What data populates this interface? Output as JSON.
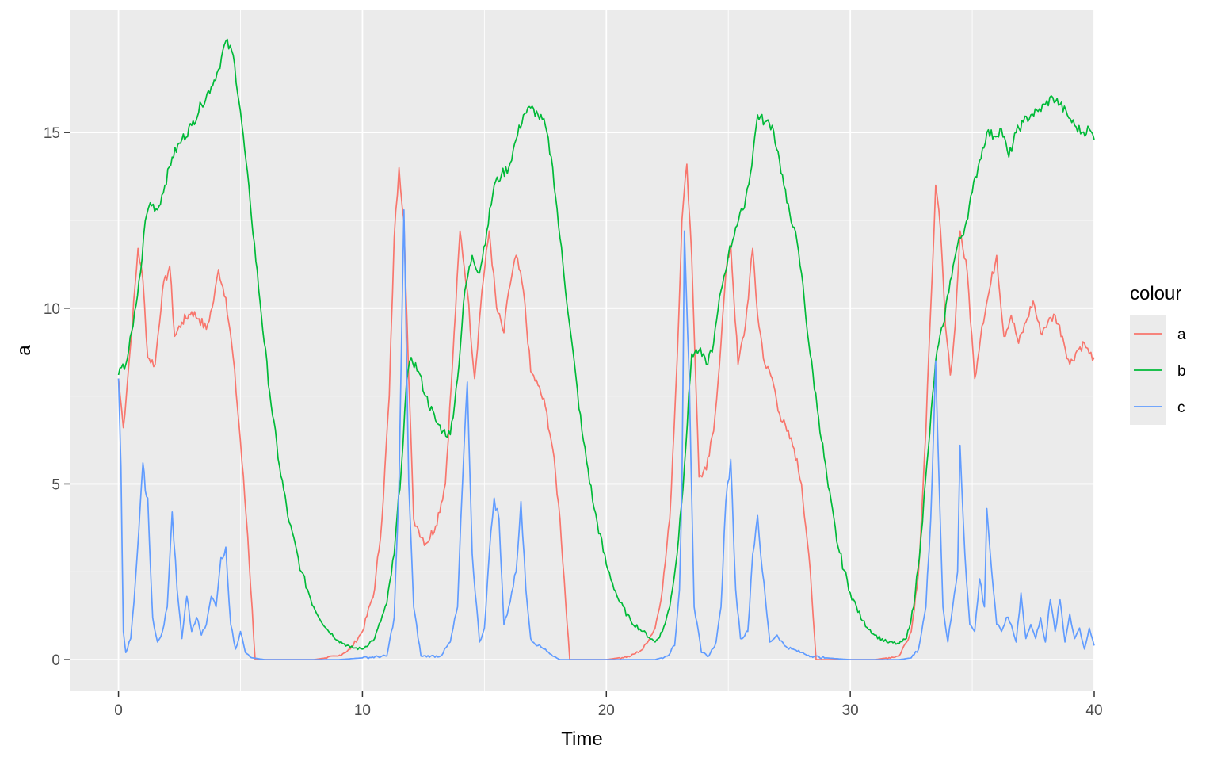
{
  "chart_data": {
    "type": "line",
    "title": "",
    "xlabel": "Time",
    "ylabel": "a",
    "xlim": [
      -2,
      40
    ],
    "ylim": [
      -0.9,
      18.5
    ],
    "x_ticks": [
      0,
      10,
      20,
      30,
      40
    ],
    "y_ticks": [
      0,
      5,
      10,
      15
    ],
    "x_tick_labels": [
      "0",
      "10",
      "20",
      "30",
      "40"
    ],
    "y_tick_labels": [
      "0",
      "5",
      "10",
      "15"
    ],
    "grid": true,
    "legend": {
      "title": "colour",
      "position": "right"
    },
    "background": "#ebebeb",
    "grid_color": "#ffffff",
    "series": [
      {
        "name": "a",
        "color": "#f8766d",
        "x": [
          0,
          0.2,
          0.5,
          0.8,
          1.0,
          1.2,
          1.5,
          1.8,
          2.1,
          2.3,
          2.6,
          3.0,
          3.3,
          3.6,
          3.9,
          4.1,
          4.4,
          4.7,
          5.0,
          5.3,
          5.6,
          6.0,
          7.0,
          8.0,
          9.0,
          9.5,
          10.0,
          10.5,
          10.8,
          11.1,
          11.3,
          11.5,
          11.7,
          11.9,
          12.1,
          12.3,
          12.6,
          13.0,
          13.4,
          13.7,
          14.0,
          14.3,
          14.6,
          14.9,
          15.2,
          15.5,
          15.8,
          16.0,
          16.3,
          16.6,
          16.9,
          17.2,
          17.5,
          17.8,
          18.1,
          18.5,
          19.0,
          20.0,
          21.0,
          21.5,
          22.0,
          22.3,
          22.6,
          22.9,
          23.1,
          23.3,
          23.5,
          23.8,
          24.1,
          24.4,
          24.7,
          24.9,
          25.1,
          25.4,
          25.7,
          26.0,
          26.2,
          26.5,
          26.8,
          27.1,
          27.4,
          27.7,
          28.0,
          28.3,
          28.6,
          29.0,
          30.0,
          31.0,
          32.0,
          32.5,
          32.8,
          33.1,
          33.3,
          33.5,
          33.7,
          33.9,
          34.1,
          34.3,
          34.5,
          34.8,
          35.1,
          35.4,
          35.7,
          36.0,
          36.3,
          36.6,
          36.9,
          37.2,
          37.5,
          37.8,
          38.1,
          38.4,
          38.7,
          39.0,
          39.3,
          39.6,
          39.8,
          40.0
        ],
        "values": [
          8.0,
          6.6,
          9.0,
          11.7,
          10.8,
          8.6,
          8.4,
          10.5,
          11.2,
          9.2,
          9.6,
          9.9,
          9.7,
          9.4,
          10.2,
          11.1,
          10.3,
          8.6,
          6.2,
          3.5,
          0.0,
          0.0,
          0.0,
          0.0,
          0.1,
          0.3,
          0.8,
          2.0,
          4.0,
          7.5,
          12.0,
          14.0,
          12.5,
          8.0,
          4.0,
          3.7,
          3.3,
          3.8,
          5.0,
          8.5,
          12.2,
          10.5,
          8.0,
          10.5,
          12.2,
          10.0,
          9.3,
          10.5,
          11.5,
          10.5,
          8.2,
          7.8,
          7.2,
          6.0,
          4.0,
          0.0,
          0.0,
          0.0,
          0.1,
          0.3,
          0.9,
          2.0,
          4.0,
          8.5,
          12.5,
          14.1,
          11.5,
          5.2,
          5.4,
          6.5,
          9.0,
          11.0,
          11.8,
          8.4,
          9.5,
          11.7,
          9.8,
          8.4,
          8.0,
          7.0,
          6.5,
          6.0,
          5.0,
          3.0,
          0.0,
          0.0,
          0.0,
          0.0,
          0.1,
          0.8,
          2.5,
          6.5,
          10.0,
          13.5,
          12.2,
          9.5,
          8.1,
          9.5,
          12.2,
          11.0,
          8.0,
          9.5,
          10.5,
          11.5,
          9.2,
          9.8,
          9.0,
          9.6,
          10.2,
          9.3,
          9.6,
          9.8,
          9.2,
          8.4,
          8.8,
          9.0,
          8.7,
          8.6
        ]
      },
      {
        "name": "b",
        "color": "#00ba38",
        "x": [
          0,
          0.3,
          0.6,
          0.9,
          1.1,
          1.3,
          1.6,
          1.9,
          2.2,
          2.6,
          3.0,
          3.4,
          3.8,
          4.1,
          4.4,
          4.7,
          5.0,
          5.4,
          5.8,
          6.2,
          6.6,
          7.0,
          7.5,
          8.0,
          8.5,
          9.0,
          9.5,
          10.0,
          10.5,
          11.0,
          11.3,
          11.6,
          11.8,
          12.0,
          12.3,
          12.6,
          13.0,
          13.3,
          13.6,
          13.9,
          14.2,
          14.5,
          14.8,
          15.1,
          15.4,
          15.7,
          16.0,
          16.3,
          16.6,
          16.9,
          17.2,
          17.5,
          17.8,
          18.1,
          18.5,
          19.0,
          19.5,
          20.0,
          20.5,
          21.0,
          21.5,
          22.0,
          22.3,
          22.6,
          22.9,
          23.2,
          23.5,
          23.8,
          24.1,
          24.4,
          24.7,
          25.0,
          25.3,
          25.6,
          25.9,
          26.2,
          26.5,
          26.8,
          27.1,
          27.4,
          27.7,
          28.0,
          28.3,
          28.7,
          29.1,
          29.5,
          30.0,
          30.5,
          31.0,
          31.5,
          32.0,
          32.3,
          32.6,
          32.9,
          33.2,
          33.5,
          33.8,
          34.1,
          34.4,
          34.7,
          35.0,
          35.3,
          35.6,
          35.9,
          36.2,
          36.5,
          36.8,
          37.1,
          37.4,
          37.7,
          38.0,
          38.3,
          38.6,
          38.9,
          39.2,
          39.5,
          39.8,
          40.0
        ],
        "values": [
          8.1,
          8.4,
          9.5,
          11.0,
          12.5,
          13.0,
          12.8,
          13.5,
          14.3,
          14.8,
          15.2,
          15.8,
          16.3,
          16.8,
          17.6,
          17.2,
          15.6,
          13.0,
          10.2,
          7.6,
          5.5,
          3.9,
          2.5,
          1.5,
          0.9,
          0.55,
          0.35,
          0.3,
          0.6,
          1.6,
          3.0,
          5.5,
          7.8,
          8.6,
          8.2,
          7.5,
          6.8,
          6.5,
          6.4,
          8.0,
          10.5,
          11.5,
          11.0,
          12.2,
          13.5,
          13.8,
          14.0,
          14.8,
          15.5,
          15.7,
          15.5,
          15.2,
          14.0,
          12.0,
          9.5,
          6.5,
          4.3,
          2.7,
          1.7,
          1.1,
          0.8,
          0.5,
          0.8,
          1.5,
          3.0,
          5.5,
          8.7,
          8.8,
          8.4,
          9.0,
          10.5,
          11.5,
          12.3,
          12.8,
          13.8,
          15.5,
          15.3,
          15.2,
          14.2,
          13.0,
          12.3,
          11.0,
          9.0,
          6.9,
          4.9,
          3.2,
          1.9,
          1.1,
          0.7,
          0.5,
          0.45,
          0.6,
          1.5,
          3.5,
          6.0,
          8.5,
          9.5,
          10.8,
          11.8,
          12.3,
          13.3,
          14.2,
          15.0,
          14.9,
          15.1,
          14.3,
          15.0,
          15.3,
          15.5,
          15.6,
          15.8,
          16.0,
          15.8,
          15.5,
          15.2,
          15.0,
          15.1,
          14.8
        ]
      },
      {
        "name": "c",
        "color": "#619cff",
        "x": [
          0,
          0.1,
          0.2,
          0.3,
          0.5,
          0.7,
          0.9,
          1.0,
          1.1,
          1.2,
          1.4,
          1.6,
          1.8,
          2.0,
          2.2,
          2.4,
          2.6,
          2.8,
          3.0,
          3.2,
          3.4,
          3.6,
          3.8,
          4.0,
          4.2,
          4.4,
          4.6,
          4.8,
          5.0,
          5.2,
          5.5,
          6.0,
          7.0,
          8.0,
          9.0,
          10.0,
          11.0,
          11.3,
          11.5,
          11.7,
          11.8,
          11.9,
          12.1,
          12.4,
          12.8,
          13.2,
          13.6,
          13.9,
          14.1,
          14.3,
          14.5,
          14.8,
          15.0,
          15.2,
          15.4,
          15.6,
          15.8,
          16.0,
          16.3,
          16.5,
          16.7,
          16.9,
          17.2,
          17.5,
          17.8,
          18.1,
          18.5,
          19.0,
          20.0,
          21.0,
          22.0,
          22.5,
          22.8,
          23.0,
          23.1,
          23.2,
          23.4,
          23.6,
          23.9,
          24.2,
          24.5,
          24.7,
          24.9,
          25.1,
          25.3,
          25.5,
          25.8,
          26.0,
          26.2,
          26.4,
          26.7,
          27.0,
          27.3,
          27.6,
          28.0,
          28.4,
          29.0,
          30.0,
          31.0,
          32.0,
          32.5,
          32.8,
          33.1,
          33.3,
          33.5,
          33.6,
          33.8,
          34.0,
          34.2,
          34.4,
          34.5,
          34.7,
          34.9,
          35.1,
          35.3,
          35.5,
          35.6,
          35.8,
          36.0,
          36.2,
          36.4,
          36.6,
          36.8,
          37.0,
          37.2,
          37.4,
          37.6,
          37.8,
          38.0,
          38.2,
          38.4,
          38.6,
          38.8,
          39.0,
          39.2,
          39.4,
          39.6,
          39.8,
          40.0
        ],
        "values": [
          8.0,
          5.5,
          0.8,
          0.2,
          0.6,
          2.3,
          4.5,
          5.6,
          4.8,
          4.6,
          1.2,
          0.5,
          0.8,
          1.5,
          4.2,
          2.0,
          0.6,
          1.8,
          0.8,
          1.2,
          0.7,
          1.0,
          1.8,
          1.5,
          2.9,
          3.2,
          1.0,
          0.3,
          0.8,
          0.2,
          0.05,
          0.0,
          0.0,
          0.0,
          0.0,
          0.05,
          0.1,
          1.2,
          5.0,
          12.8,
          9.0,
          5.0,
          1.5,
          0.1,
          0.1,
          0.1,
          0.5,
          1.5,
          5.0,
          7.9,
          3.0,
          0.5,
          0.9,
          3.0,
          4.6,
          4.0,
          1.0,
          1.5,
          2.5,
          4.5,
          2.0,
          0.6,
          0.4,
          0.3,
          0.1,
          0.0,
          0.0,
          0.0,
          0.0,
          0.0,
          0.0,
          0.1,
          0.4,
          2.0,
          5.0,
          12.2,
          8.0,
          1.5,
          0.2,
          0.1,
          0.5,
          1.5,
          4.5,
          5.7,
          2.0,
          0.6,
          0.8,
          3.0,
          4.1,
          2.5,
          0.5,
          0.7,
          0.4,
          0.3,
          0.2,
          0.1,
          0.05,
          0.0,
          0.0,
          0.0,
          0.05,
          0.3,
          1.5,
          4.0,
          8.5,
          6.0,
          1.5,
          0.5,
          1.5,
          2.5,
          6.1,
          3.0,
          1.0,
          0.8,
          2.3,
          1.5,
          4.3,
          2.5,
          1.0,
          0.8,
          1.2,
          1.0,
          0.5,
          1.9,
          0.6,
          1.0,
          0.6,
          1.2,
          0.5,
          1.7,
          0.8,
          1.7,
          0.5,
          1.3,
          0.6,
          0.9,
          0.3,
          0.9,
          0.4
        ]
      }
    ]
  }
}
